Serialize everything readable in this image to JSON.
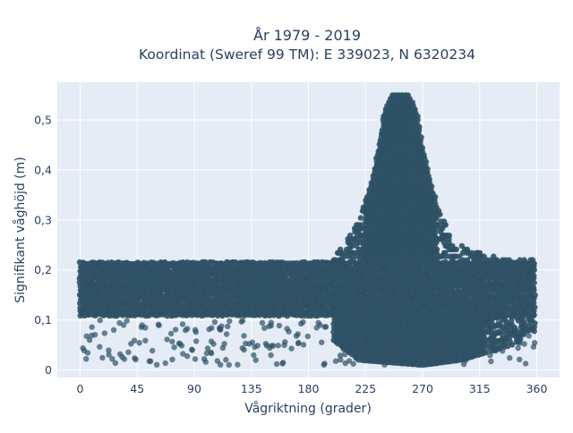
{
  "chart_data": {
    "type": "scatter",
    "title_lines": [
      "År 1979 - 2019",
      "Koordinat (Sweref 99 TM): E 339023, N 6320234"
    ],
    "xlabel": "Vågriktning (grader)",
    "ylabel": "Signifikant våghöjd (m)",
    "xlim": [
      -18,
      378
    ],
    "ylim": [
      -0.015,
      0.575
    ],
    "xticks": [
      0,
      45,
      90,
      135,
      180,
      225,
      270,
      315,
      360
    ],
    "xtick_labels": [
      "0",
      "45",
      "90",
      "135",
      "180",
      "225",
      "270",
      "315",
      "360"
    ],
    "yticks": [
      0,
      0.1,
      0.2,
      0.3,
      0.4,
      0.5
    ],
    "ytick_labels": [
      "0",
      "0,1",
      "0,2",
      "0,3",
      "0,4",
      "0,5"
    ],
    "grid": true,
    "colors": {
      "marker": "#2f5166",
      "plot_bg": "#e5ecf6",
      "grid": "#ffffff",
      "text": "#2a3f5f"
    },
    "series": [
      {
        "marker": "circle",
        "band": {
          "x_range": [
            0,
            360
          ],
          "y_range": [
            0.11,
            0.22
          ],
          "sparse_low_y_range": [
            0.01,
            0.1
          ]
        },
        "peak_envelope": [
          [
            200,
            0.23
          ],
          [
            210,
            0.26
          ],
          [
            220,
            0.3
          ],
          [
            230,
            0.38
          ],
          [
            235,
            0.44
          ],
          [
            240,
            0.52
          ],
          [
            245,
            0.55
          ],
          [
            260,
            0.55
          ],
          [
            265,
            0.52
          ],
          [
            270,
            0.45
          ],
          [
            278,
            0.36
          ],
          [
            290,
            0.28
          ],
          [
            300,
            0.25
          ],
          [
            320,
            0.23
          ],
          [
            340,
            0.22
          ],
          [
            360,
            0.22
          ]
        ],
        "dense_floor": [
          [
            200,
            0.06
          ],
          [
            220,
            0.02
          ],
          [
            270,
            0.01
          ],
          [
            300,
            0.02
          ],
          [
            340,
            0.05
          ],
          [
            360,
            0.08
          ]
        ]
      }
    ]
  }
}
